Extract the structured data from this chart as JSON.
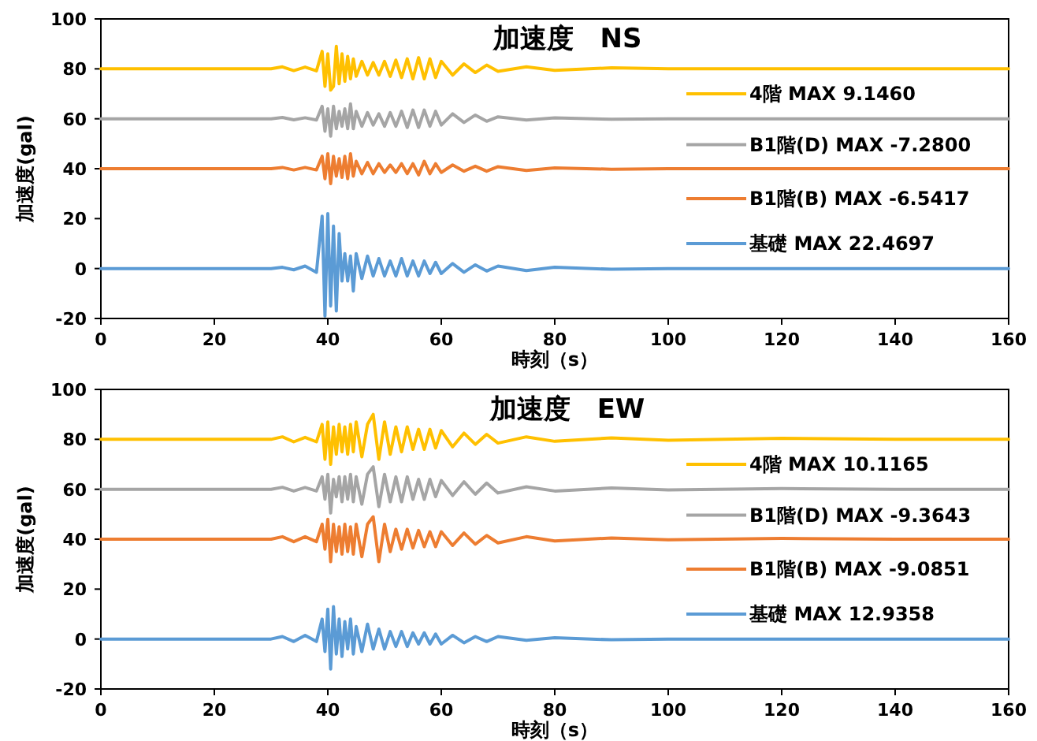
{
  "chart_data": [
    {
      "type": "line",
      "title": "加速度　NS",
      "xlabel": "時刻（s）",
      "ylabel": "加速度(gal)",
      "xlim": [
        0,
        160
      ],
      "ylim": [
        -20,
        100
      ],
      "xticks": [
        0,
        20,
        40,
        60,
        80,
        100,
        120,
        140,
        160
      ],
      "yticks": [
        -20,
        0,
        20,
        40,
        60,
        80,
        100
      ],
      "legend": "right",
      "x": [
        0,
        10,
        20,
        30,
        32,
        34,
        36,
        38,
        39,
        39.5,
        40,
        40.5,
        41,
        41.5,
        42,
        42.5,
        43,
        43.5,
        44,
        44.5,
        45,
        46,
        47,
        48,
        49,
        50,
        51,
        52,
        53,
        54,
        55,
        56,
        57,
        58,
        59,
        60,
        62,
        64,
        66,
        68,
        70,
        75,
        80,
        90,
        100,
        120,
        140,
        160
      ],
      "series": [
        {
          "name": "4階 MAX 9.1460",
          "color": "#ffc000",
          "values": [
            80,
            80,
            80,
            80,
            80.8,
            79.3,
            80.7,
            79.2,
            87,
            73,
            86,
            71.5,
            73,
            89,
            74,
            86,
            75,
            85,
            76,
            84,
            77,
            83,
            77.5,
            82.5,
            77.5,
            83,
            77,
            83.5,
            76.5,
            84,
            76,
            84.5,
            76,
            84,
            76.5,
            83,
            77.5,
            82,
            78.5,
            81.5,
            79,
            80.8,
            79.4,
            80.4,
            80,
            80,
            80,
            80
          ]
        },
        {
          "name": "B1階(D) MAX -7.2800",
          "color": "#a5a5a5",
          "values": [
            60,
            60,
            60,
            60,
            60.5,
            59.6,
            60.4,
            59.5,
            65,
            55,
            64,
            53,
            65,
            56,
            63,
            57,
            64,
            56,
            66,
            56,
            63,
            57,
            62.5,
            57.5,
            62,
            57,
            62.5,
            57,
            63,
            56.5,
            63.5,
            56.5,
            63.5,
            57,
            63,
            57.5,
            62,
            58.5,
            61.5,
            59,
            60.8,
            59.5,
            60.4,
            59.8,
            60,
            60,
            60,
            60
          ]
        },
        {
          "name": "B1階(B) MAX -6.5417",
          "color": "#ed7d31",
          "values": [
            40,
            40,
            40,
            40,
            40.5,
            39.5,
            40.5,
            39.5,
            45,
            36,
            46,
            34,
            45,
            37,
            44,
            36.5,
            45,
            36,
            46,
            37,
            43,
            38,
            42.5,
            38,
            42,
            38.5,
            41.5,
            38.5,
            42,
            38,
            42,
            37.5,
            43,
            38,
            42,
            38.5,
            41.5,
            39,
            41,
            39,
            40.8,
            39.3,
            40.3,
            39.8,
            40,
            40,
            40,
            40
          ]
        },
        {
          "name": "基礎 MAX 22.4697",
          "color": "#5b9bd5",
          "values": [
            0,
            0,
            0,
            0,
            0.5,
            -0.5,
            1,
            -1.5,
            21,
            -19,
            22,
            -15,
            17,
            -17,
            14,
            -5,
            6,
            -5,
            5,
            -9,
            6,
            -4,
            5,
            -3,
            4,
            -3,
            3,
            -3,
            4,
            -3,
            3,
            -3,
            3,
            -2,
            2.5,
            -2,
            2,
            -1.5,
            1.5,
            -1,
            1,
            -0.8,
            0.5,
            -0.3,
            0,
            0,
            0,
            0
          ]
        }
      ]
    },
    {
      "type": "line",
      "title": "加速度　EW",
      "xlabel": "時刻（s）",
      "ylabel": "加速度(gal)",
      "xlim": [
        0,
        160
      ],
      "ylim": [
        -20,
        100
      ],
      "xticks": [
        0,
        20,
        40,
        60,
        80,
        100,
        120,
        140,
        160
      ],
      "yticks": [
        -20,
        0,
        20,
        40,
        60,
        80,
        100
      ],
      "legend": "right",
      "x": [
        0,
        10,
        20,
        30,
        32,
        34,
        36,
        38,
        39,
        39.5,
        40,
        40.5,
        41,
        41.5,
        42,
        42.5,
        43,
        43.5,
        44,
        44.5,
        45,
        46,
        47,
        48,
        49,
        50,
        51,
        52,
        53,
        54,
        55,
        56,
        57,
        58,
        59,
        60,
        62,
        64,
        66,
        68,
        70,
        75,
        80,
        90,
        100,
        120,
        140,
        160
      ],
      "series": [
        {
          "name": "4階 MAX 10.1165",
          "color": "#ffc000",
          "values": [
            80,
            80,
            80,
            80,
            81,
            79,
            80.8,
            79,
            86,
            72,
            87,
            70,
            85,
            74,
            86,
            75,
            85,
            74,
            86,
            75,
            87,
            73,
            86,
            90,
            72,
            87,
            74,
            85,
            75,
            85,
            76,
            84,
            76,
            84,
            76.5,
            83.5,
            77,
            82.5,
            78,
            82,
            78.5,
            81,
            79.2,
            80.6,
            79.6,
            80.4,
            80,
            80
          ]
        },
        {
          "name": "B1階(D) MAX -9.3643",
          "color": "#a5a5a5",
          "values": [
            60,
            60,
            60,
            60,
            60.8,
            59.3,
            60.7,
            59.3,
            65,
            56,
            66,
            50.5,
            64,
            57,
            65,
            55,
            65,
            56,
            66,
            55,
            65,
            54,
            66,
            69,
            53,
            66,
            55,
            65,
            55,
            65,
            56,
            64,
            56,
            64,
            57,
            63.5,
            57.5,
            63,
            58,
            62.5,
            58.5,
            61,
            59.3,
            60.5,
            59.7,
            60.3,
            60,
            60
          ]
        },
        {
          "name": "B1階(B) MAX -9.0851",
          "color": "#ed7d31",
          "values": [
            40,
            40,
            40,
            40,
            41,
            39,
            41,
            39,
            46,
            36,
            48,
            31,
            46,
            35,
            45,
            34,
            46,
            35,
            45,
            34,
            46,
            33,
            46,
            49,
            31,
            46,
            35,
            44,
            36,
            44,
            36.5,
            43.5,
            37,
            43,
            37,
            43,
            37.5,
            42.5,
            38,
            41.5,
            38.5,
            41,
            39.3,
            40.5,
            39.8,
            40.3,
            40,
            40
          ]
        },
        {
          "name": "基礎 MAX 12.9358",
          "color": "#5b9bd5",
          "values": [
            0,
            0,
            0,
            0,
            1,
            -1,
            1.5,
            -1,
            8,
            -5,
            12,
            -12,
            13,
            -6,
            8,
            -7,
            7,
            -4,
            8,
            -6,
            5,
            -5,
            6,
            -4,
            4,
            -4,
            3,
            -3,
            3,
            -3,
            2.5,
            -2,
            2.5,
            -2,
            2,
            -2,
            1.5,
            -1.5,
            1,
            -1,
            1,
            -0.5,
            0.5,
            -0.3,
            0,
            0,
            0,
            0
          ]
        }
      ]
    }
  ]
}
